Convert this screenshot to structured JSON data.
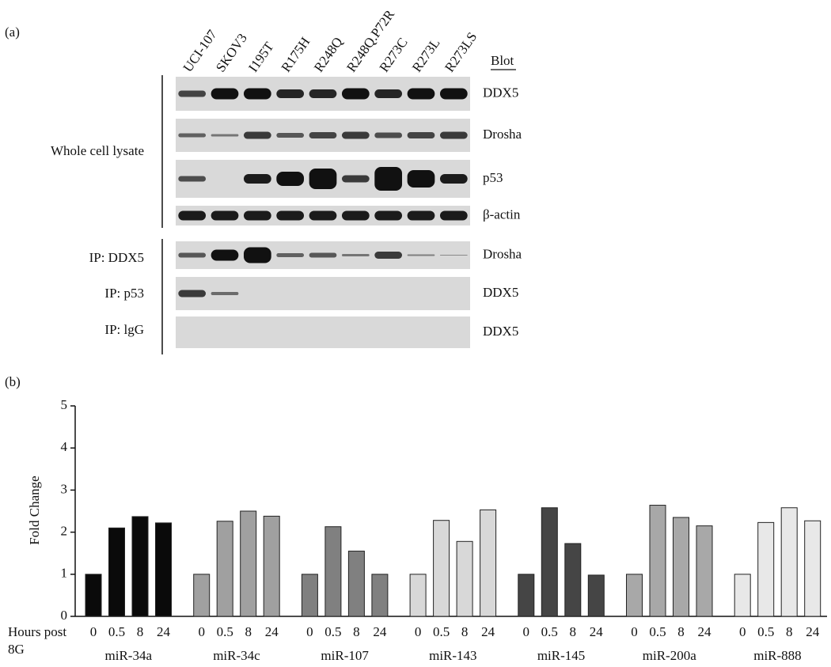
{
  "panel_a": {
    "label": "(a)",
    "lanes": [
      "UCI-107",
      "SKOV3",
      "I195T",
      "R175H",
      "R248Q",
      "R248Q.P72R",
      "R273C",
      "R273L",
      "R273LS"
    ],
    "blot_header": "Blot",
    "rows": [
      {
        "group": "Whole cell lysate",
        "blot": "DDX5"
      },
      {
        "blot": "Drosha"
      },
      {
        "blot": "p53"
      },
      {
        "blot": "β-actin"
      },
      {
        "group": "IP: DDX5",
        "blot": "Drosha"
      },
      {
        "group": "IP: p53",
        "blot": "DDX5"
      },
      {
        "group": "IP: lgG",
        "blot": "DDX5"
      }
    ]
  },
  "chart_data": {
    "type": "grouped_bar",
    "panel_label": "(b)",
    "y_label": "Fold Change",
    "x_label": [
      "Hours post",
      "8G"
    ],
    "subcategories": [
      "0",
      "0.5",
      "8",
      "24"
    ],
    "ylim": [
      0,
      5
    ],
    "yticks": [
      0,
      1,
      2,
      3,
      4,
      5
    ],
    "groups": [
      {
        "name": "miR-34a",
        "color": "#0a0a0a",
        "values": [
          1,
          2.1,
          2.37,
          2.22
        ]
      },
      {
        "name": "miR-34c",
        "color": "#a0a0a0",
        "values": [
          1,
          2.26,
          2.5,
          2.38
        ]
      },
      {
        "name": "miR-107",
        "color": "#808080",
        "values": [
          1,
          2.13,
          1.55,
          1
        ]
      },
      {
        "name": "miR-143",
        "color": "#d8d8d8",
        "values": [
          1,
          2.28,
          1.78,
          2.53
        ]
      },
      {
        "name": "miR-145",
        "color": "#454545",
        "values": [
          1,
          2.58,
          1.73,
          0.98
        ]
      },
      {
        "name": "miR-200a",
        "color": "#a8a8a8",
        "values": [
          1,
          2.64,
          2.35,
          2.15
        ]
      },
      {
        "name": "miR-888",
        "color": "#e8e8e8",
        "values": [
          1,
          2.23,
          2.58,
          2.27
        ]
      }
    ]
  }
}
